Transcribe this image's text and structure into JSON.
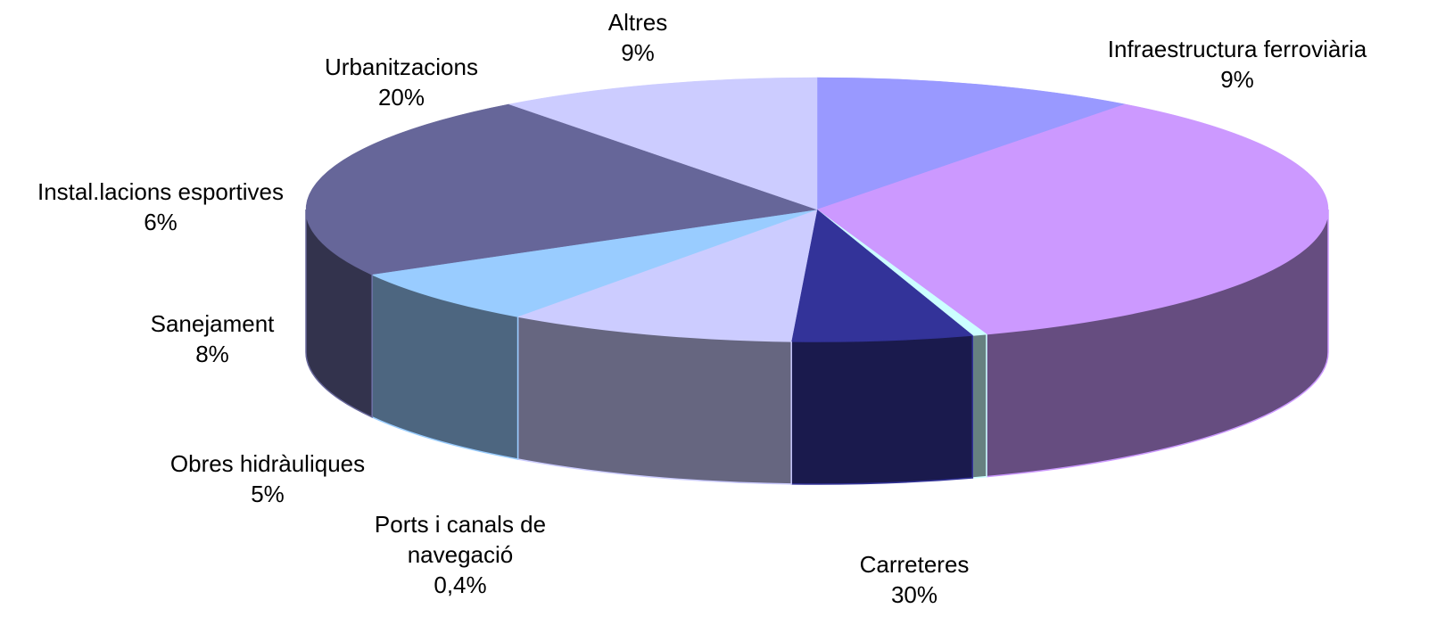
{
  "chart_data": {
    "type": "pie3d",
    "categories": [
      "Infraestructura ferroviària",
      "Carreteres",
      "Ports i canals de navegació",
      "Obres hidràuliques",
      "Sanejament",
      "Instal.lacions esportives",
      "Urbanitzacions",
      "Altres"
    ],
    "values": [
      9,
      30,
      0.4,
      5,
      8,
      6,
      20,
      9
    ],
    "value_labels": [
      "9%",
      "30%",
      "0,4%",
      "5%",
      "8%",
      "6%",
      "20%",
      "9%"
    ],
    "colors": [
      "#9999ff",
      "#cc99ff",
      "#ccffff",
      "#333399",
      "#ccccff",
      "#99ccff",
      "#666699",
      "#ccccff"
    ]
  }
}
